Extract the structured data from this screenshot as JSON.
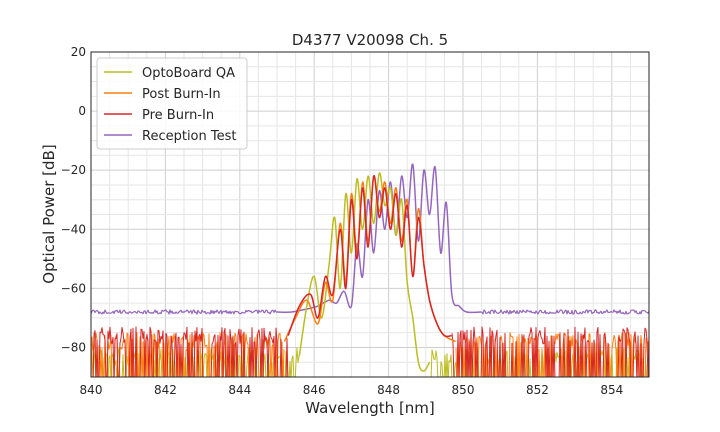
{
  "chart_data": {
    "type": "line",
    "title": "D4377 V20098 Ch. 5",
    "xlabel": "Wavelength [nm]",
    "ylabel": "Optical Power [dB]",
    "xlim": [
      840,
      855
    ],
    "ylim": [
      -90,
      20
    ],
    "xticks": [
      840,
      842,
      844,
      846,
      848,
      850,
      852,
      854
    ],
    "yticks": [
      20,
      0,
      -20,
      -40,
      -60,
      -80
    ],
    "ytick_labels": [
      "20",
      "0",
      "−20",
      "−40",
      "−60",
      "−80"
    ],
    "grid": true,
    "legend_position": "top-left",
    "series": [
      {
        "name": "OptoBoard QA",
        "color": "#bcbd22",
        "noise_floor": -83,
        "floor_range": [
          845.6,
          849.1
        ],
        "x": [
          845.6,
          845.8,
          846.0,
          846.2,
          846.4,
          846.55,
          846.7,
          846.85,
          847.0,
          847.15,
          847.3,
          847.45,
          847.6,
          847.75,
          847.9,
          848.05,
          848.2,
          848.35,
          848.5,
          848.65,
          848.8,
          848.95,
          849.1
        ],
        "values": [
          -83,
          -66,
          -56,
          -70,
          -52,
          -36,
          -60,
          -28,
          -48,
          -23,
          -40,
          -22,
          -38,
          -21,
          -32,
          -26,
          -42,
          -30,
          -58,
          -70,
          -85,
          -88,
          -85
        ]
      },
      {
        "name": "Post Burn-In",
        "color": "#ff7f0e",
        "noise_floor": -78,
        "floor_range": [
          845.2,
          849.8
        ],
        "x": [
          845.2,
          845.5,
          845.8,
          846.1,
          846.3,
          846.5,
          846.7,
          846.85,
          847.0,
          847.15,
          847.3,
          847.45,
          847.6,
          847.75,
          847.9,
          848.05,
          848.2,
          848.35,
          848.5,
          848.65,
          848.8,
          848.95,
          849.1,
          849.3,
          849.5,
          849.8
        ],
        "values": [
          -78,
          -70,
          -64,
          -72,
          -58,
          -64,
          -38,
          -58,
          -28,
          -48,
          -24,
          -44,
          -22,
          -34,
          -24,
          -38,
          -26,
          -44,
          -30,
          -56,
          -33,
          -52,
          -64,
          -72,
          -76,
          -78
        ]
      },
      {
        "name": "Pre Burn-In",
        "color": "#d62728",
        "noise_floor": -76,
        "floor_range": [
          845.3,
          849.7
        ],
        "x": [
          845.3,
          845.6,
          845.9,
          846.1,
          846.3,
          846.5,
          846.7,
          846.85,
          847.0,
          847.15,
          847.3,
          847.45,
          847.6,
          847.75,
          847.9,
          848.05,
          848.2,
          848.35,
          848.5,
          848.65,
          848.8,
          848.95,
          849.1,
          849.3,
          849.5,
          849.7
        ],
        "values": [
          -76,
          -66,
          -62,
          -70,
          -56,
          -62,
          -40,
          -60,
          -30,
          -50,
          -26,
          -46,
          -22,
          -36,
          -26,
          -40,
          -28,
          -46,
          -32,
          -56,
          -36,
          -52,
          -64,
          -72,
          -76,
          -76
        ]
      },
      {
        "name": "Reception Test",
        "color": "#9467bd",
        "noise_floor": -68,
        "floor_range": [
          845.0,
          850.5
        ],
        "x": [
          845.0,
          845.4,
          845.8,
          846.1,
          846.4,
          846.6,
          846.8,
          847.0,
          847.15,
          847.3,
          847.45,
          847.6,
          847.75,
          847.9,
          848.05,
          848.2,
          848.35,
          848.5,
          848.65,
          848.8,
          848.95,
          849.1,
          849.25,
          849.4,
          849.55,
          849.7,
          849.9,
          850.1,
          850.5
        ],
        "values": [
          -68,
          -68,
          -67,
          -66,
          -64,
          -65,
          -61,
          -66,
          -45,
          -56,
          -30,
          -48,
          -27,
          -40,
          -24,
          -42,
          -22,
          -36,
          -18,
          -44,
          -20,
          -35,
          -19,
          -48,
          -31,
          -62,
          -66,
          -68,
          -68
        ]
      }
    ]
  }
}
